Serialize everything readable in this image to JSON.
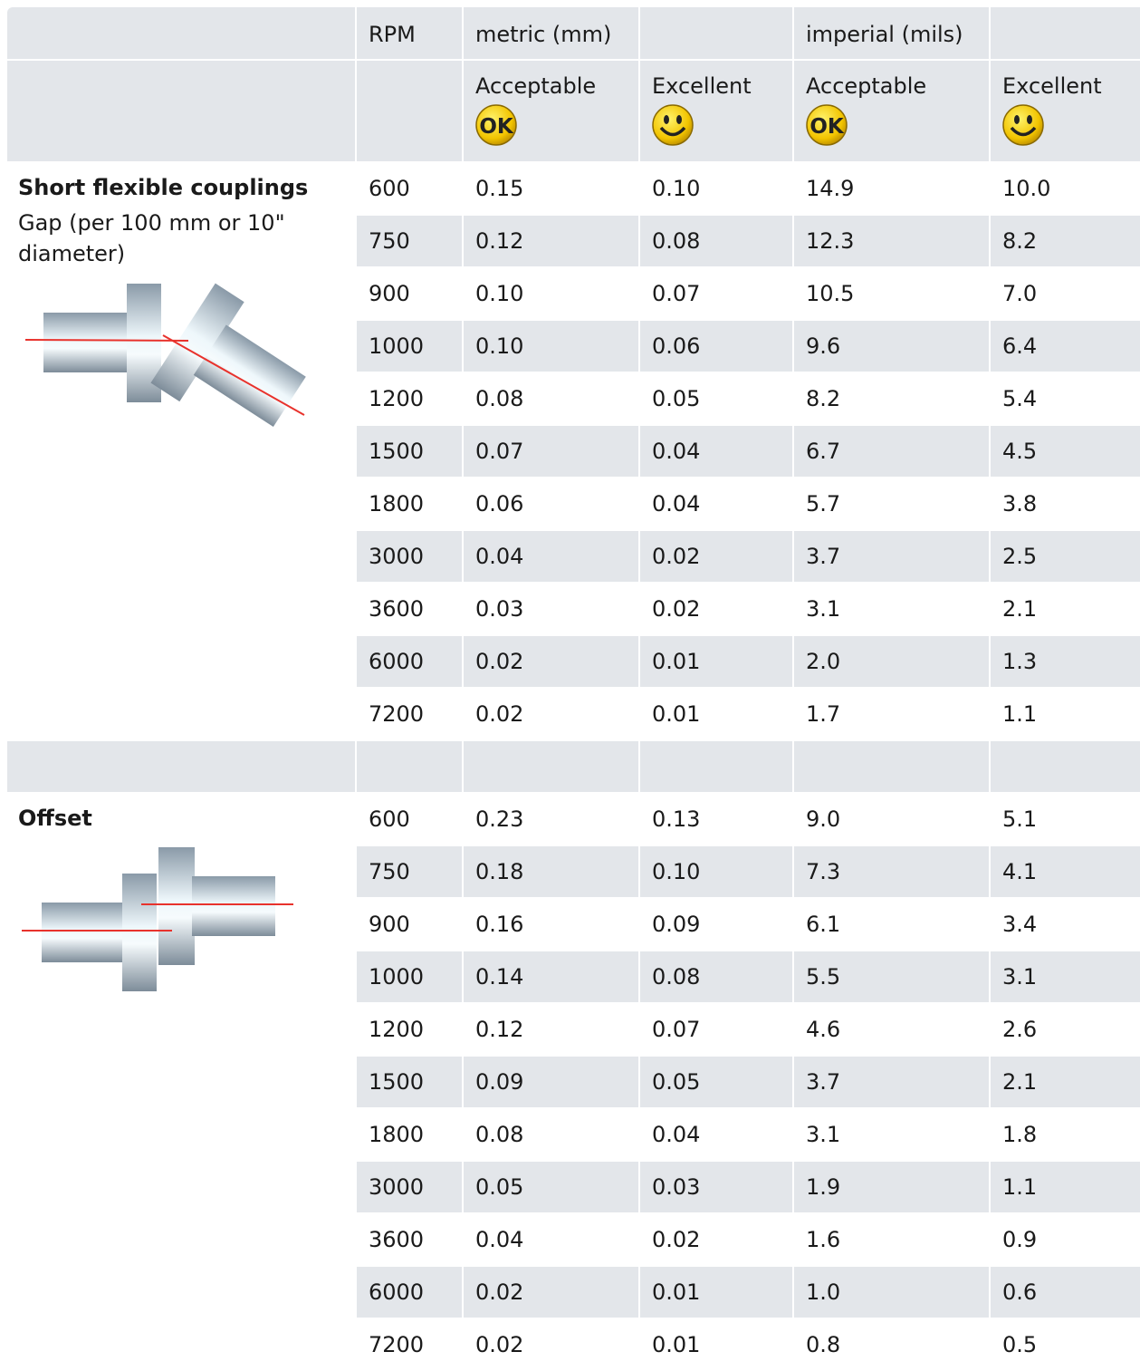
{
  "header": {
    "rpm": "RPM",
    "metric": "metric (mm)",
    "imperial": "imperial (mils)",
    "subheaders": [
      {
        "label": "Acceptable",
        "icon": "OK"
      },
      {
        "label": "Excellent"
      },
      {
        "label": "Acceptable",
        "icon": "OK"
      },
      {
        "label": "Excellent"
      }
    ]
  },
  "sections": [
    {
      "title": "Short flexible couplings",
      "subtitle": "Gap (per 100 mm or 10\" diameter)",
      "rows": [
        [
          "600",
          "0.15",
          "0.10",
          "14.9",
          "10.0"
        ],
        [
          "750",
          "0.12",
          "0.08",
          "12.3",
          "8.2"
        ],
        [
          "900",
          "0.10",
          "0.07",
          "10.5",
          "7.0"
        ],
        [
          "1000",
          "0.10",
          "0.06",
          "9.6",
          "6.4"
        ],
        [
          "1200",
          "0.08",
          "0.05",
          "8.2",
          "5.4"
        ],
        [
          "1500",
          "0.07",
          "0.04",
          "6.7",
          "4.5"
        ],
        [
          "1800",
          "0.06",
          "0.04",
          "5.7",
          "3.8"
        ],
        [
          "3000",
          "0.04",
          "0.02",
          "3.7",
          "2.5"
        ],
        [
          "3600",
          "0.03",
          "0.02",
          "3.1",
          "2.1"
        ],
        [
          "6000",
          "0.02",
          "0.01",
          "2.0",
          "1.3"
        ],
        [
          "7200",
          "0.02",
          "0.01",
          "1.7",
          "1.1"
        ]
      ]
    },
    {
      "title": "Offset",
      "rows": [
        [
          "600",
          "0.23",
          "0.13",
          "9.0",
          "5.1"
        ],
        [
          "750",
          "0.18",
          "0.10",
          "7.3",
          "4.1"
        ],
        [
          "900",
          "0.16",
          "0.09",
          "6.1",
          "3.4"
        ],
        [
          "1000",
          "0.14",
          "0.08",
          "5.5",
          "3.1"
        ],
        [
          "1200",
          "0.12",
          "0.07",
          "4.6",
          "2.6"
        ],
        [
          "1500",
          "0.09",
          "0.05",
          "3.7",
          "2.1"
        ],
        [
          "1800",
          "0.08",
          "0.04",
          "3.1",
          "1.8"
        ],
        [
          "3000",
          "0.05",
          "0.03",
          "1.9",
          "1.1"
        ],
        [
          "3600",
          "0.04",
          "0.02",
          "1.6",
          "0.9"
        ],
        [
          "6000",
          "0.02",
          "0.01",
          "1.0",
          "0.6"
        ],
        [
          "7200",
          "0.02",
          "0.01",
          "0.8",
          "0.5"
        ]
      ]
    }
  ]
}
